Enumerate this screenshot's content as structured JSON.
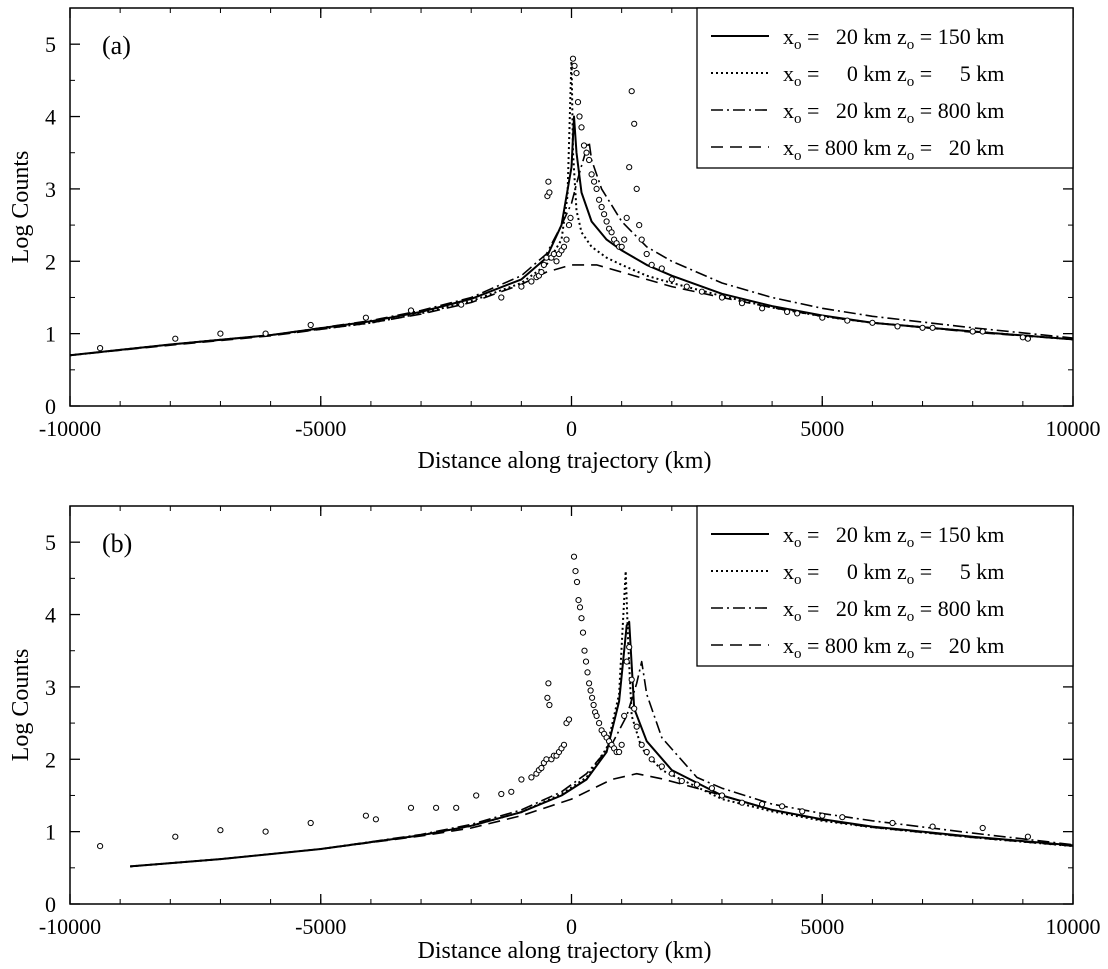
{
  "chart_data": [
    {
      "type": "line",
      "panel_label": "(a)",
      "xlabel": "Distance along trajectory (km)",
      "ylabel": "Log Counts",
      "xlim": [
        -10000,
        10000
      ],
      "ylim": [
        0,
        5.5
      ],
      "x_ticks": [
        -10000,
        -5000,
        0,
        5000,
        10000
      ],
      "y_ticks": [
        0,
        1,
        2,
        3,
        4,
        5
      ],
      "legend_position": "top-right",
      "legend": [
        {
          "prefix": "x",
          "sub": "o",
          "mid_a": " =   20 km z",
          "mid_sub": "o",
          "suffix": " = 150 km",
          "style": "solid"
        },
        {
          "prefix": "x",
          "sub": "o",
          "mid_a": " =     0 km z",
          "mid_sub": "o",
          "suffix": " =     5 km",
          "style": "dotted"
        },
        {
          "prefix": "x",
          "sub": "o",
          "mid_a": " =   20 km z",
          "mid_sub": "o",
          "suffix": " = 800 km",
          "style": "dashdot"
        },
        {
          "prefix": "x",
          "sub": "o",
          "mid_a": " = 800 km z",
          "mid_sub": "o",
          "suffix": " =   20 km",
          "style": "dashed"
        }
      ],
      "series": [
        {
          "style": "solid",
          "x": [
            -10000,
            -8000,
            -6000,
            -4000,
            -3000,
            -2000,
            -1000,
            -500,
            -200,
            0,
            50,
            100,
            200,
            400,
            700,
            1000,
            1500,
            2000,
            3000,
            4000,
            5000,
            6000,
            8000,
            10000
          ],
          "y": [
            0.7,
            0.85,
            0.98,
            1.17,
            1.3,
            1.48,
            1.75,
            2.05,
            2.5,
            3.3,
            4.0,
            3.5,
            2.95,
            2.55,
            2.3,
            2.15,
            1.95,
            1.8,
            1.55,
            1.38,
            1.25,
            1.15,
            1.03,
            0.92
          ]
        },
        {
          "style": "dotted",
          "x": [
            -10000,
            -8000,
            -6000,
            -4000,
            -3000,
            -2000,
            -1000,
            -500,
            -200,
            -80,
            0,
            30,
            100,
            200,
            400,
            700,
            1000,
            1500,
            2000,
            3000,
            4000,
            5000,
            6000,
            8000,
            10000
          ],
          "y": [
            0.7,
            0.85,
            0.98,
            1.15,
            1.28,
            1.45,
            1.7,
            1.95,
            2.3,
            2.9,
            4.8,
            3.5,
            2.7,
            2.4,
            2.2,
            2.05,
            1.95,
            1.8,
            1.7,
            1.52,
            1.36,
            1.24,
            1.15,
            1.03,
            0.92
          ]
        },
        {
          "style": "dashdot",
          "x": [
            -10000,
            -8000,
            -6000,
            -4000,
            -3000,
            -2000,
            -1000,
            -500,
            -200,
            0,
            150,
            300,
            350,
            400,
            600,
            1000,
            1500,
            2000,
            3000,
            4000,
            5000,
            6000,
            8000,
            10000
          ],
          "y": [
            0.7,
            0.85,
            0.98,
            1.18,
            1.32,
            1.5,
            1.8,
            2.1,
            2.5,
            2.8,
            3.2,
            3.55,
            3.65,
            3.4,
            3.0,
            2.55,
            2.2,
            2.0,
            1.7,
            1.5,
            1.35,
            1.24,
            1.08,
            0.94
          ]
        },
        {
          "style": "dashed",
          "x": [
            -10000,
            -8000,
            -6000,
            -4000,
            -3000,
            -2000,
            -1000,
            -500,
            0,
            500,
            1000,
            1500,
            2000,
            3000,
            4000,
            5000,
            6000,
            8000,
            10000
          ],
          "y": [
            0.7,
            0.84,
            0.97,
            1.15,
            1.27,
            1.43,
            1.68,
            1.85,
            1.95,
            1.95,
            1.85,
            1.75,
            1.65,
            1.5,
            1.36,
            1.24,
            1.15,
            1.02,
            0.92
          ]
        }
      ],
      "observations": {
        "x": [
          -9400,
          -7900,
          -7000,
          -6100,
          -5200,
          -4100,
          -3200,
          -2200,
          -1400,
          -1000,
          -800,
          -700,
          -650,
          -600,
          -550,
          -500,
          -480,
          -460,
          -440,
          -400,
          -350,
          -300,
          -250,
          -200,
          -150,
          -100,
          -50,
          -20,
          30,
          60,
          100,
          130,
          160,
          200,
          250,
          300,
          350,
          400,
          450,
          500,
          550,
          600,
          650,
          700,
          750,
          800,
          850,
          900,
          950,
          1000,
          1050,
          1100,
          1150,
          1200,
          1250,
          1300,
          1350,
          1400,
          1500,
          1600,
          1800,
          2000,
          2300,
          2600,
          3000,
          3400,
          3800,
          4300,
          4500,
          5000,
          5500,
          6000,
          6500,
          7000,
          7200,
          8000,
          8200,
          9000,
          9100
        ],
        "y": [
          0.8,
          0.93,
          1.0,
          1.0,
          1.12,
          1.22,
          1.32,
          1.4,
          1.5,
          1.65,
          1.72,
          1.78,
          1.8,
          1.85,
          1.95,
          2.05,
          2.9,
          3.1,
          2.95,
          2.05,
          2.1,
          2.0,
          2.1,
          2.15,
          2.2,
          2.3,
          2.5,
          2.6,
          4.8,
          4.7,
          4.6,
          4.2,
          4.0,
          3.85,
          3.6,
          3.5,
          3.4,
          3.2,
          3.1,
          3.0,
          2.85,
          2.75,
          2.65,
          2.55,
          2.45,
          2.4,
          2.3,
          2.25,
          2.2,
          2.2,
          2.3,
          2.6,
          3.3,
          4.35,
          3.9,
          3.0,
          2.5,
          2.3,
          2.1,
          1.95,
          1.9,
          1.75,
          1.65,
          1.58,
          1.5,
          1.42,
          1.35,
          1.3,
          1.28,
          1.22,
          1.18,
          1.15,
          1.1,
          1.08,
          1.08,
          1.03,
          1.03,
          0.95,
          0.93
        ]
      }
    },
    {
      "type": "line",
      "panel_label": "(b)",
      "xlabel": "Distance along trajectory (km)",
      "ylabel": "Log Counts",
      "xlim": [
        -10000,
        10000
      ],
      "ylim": [
        0,
        5.5
      ],
      "x_ticks": [
        -10000,
        -5000,
        0,
        5000,
        10000
      ],
      "y_ticks": [
        0,
        1,
        2,
        3,
        4,
        5
      ],
      "legend_position": "top-right",
      "legend": [
        {
          "prefix": "x",
          "sub": "o",
          "mid_a": " =   20 km z",
          "mid_sub": "o",
          "suffix": " = 150 km",
          "style": "solid"
        },
        {
          "prefix": "x",
          "sub": "o",
          "mid_a": " =     0 km z",
          "mid_sub": "o",
          "suffix": " =     5 km",
          "style": "dotted"
        },
        {
          "prefix": "x",
          "sub": "o",
          "mid_a": " =   20 km z",
          "mid_sub": "o",
          "suffix": " = 800 km",
          "style": "dashdot"
        },
        {
          "prefix": "x",
          "sub": "o",
          "mid_a": " = 800 km z",
          "mid_sub": "o",
          "suffix": " =   20 km",
          "style": "dashed"
        }
      ],
      "series": [
        {
          "style": "solid",
          "x": [
            -8800,
            -7000,
            -5000,
            -3000,
            -2000,
            -1000,
            -200,
            300,
            700,
            950,
            1100,
            1150,
            1250,
            1500,
            2000,
            3000,
            4000,
            5000,
            6000,
            8000,
            10000
          ],
          "y": [
            0.52,
            0.62,
            0.76,
            0.95,
            1.08,
            1.27,
            1.5,
            1.72,
            2.1,
            2.8,
            3.85,
            3.9,
            2.7,
            2.25,
            1.85,
            1.5,
            1.3,
            1.17,
            1.07,
            0.93,
            0.81
          ]
        },
        {
          "style": "dotted",
          "x": [
            -8800,
            -7000,
            -5000,
            -3000,
            -2000,
            -1000,
            -200,
            300,
            700,
            950,
            1080,
            1130,
            1200,
            1400,
            1800,
            3000,
            4000,
            5000,
            6000,
            8000,
            10000
          ],
          "y": [
            0.52,
            0.62,
            0.76,
            0.95,
            1.08,
            1.27,
            1.52,
            1.75,
            2.15,
            2.9,
            4.6,
            3.6,
            2.6,
            2.15,
            1.85,
            1.45,
            1.28,
            1.15,
            1.06,
            0.92,
            0.8
          ]
        },
        {
          "style": "dashdot",
          "x": [
            -8800,
            -7000,
            -5000,
            -3000,
            -2000,
            -1000,
            -200,
            300,
            800,
            1100,
            1300,
            1400,
            1500,
            1800,
            2500,
            3000,
            4000,
            5000,
            6000,
            8000,
            10000
          ],
          "y": [
            0.52,
            0.62,
            0.76,
            0.96,
            1.1,
            1.3,
            1.55,
            1.8,
            2.2,
            2.6,
            3.05,
            3.35,
            2.9,
            2.3,
            1.75,
            1.6,
            1.38,
            1.25,
            1.15,
            0.98,
            0.82
          ]
        },
        {
          "style": "dashed",
          "x": [
            -8800,
            -7000,
            -5000,
            -3000,
            -2000,
            -1000,
            0,
            800,
            1300,
            1800,
            2500,
            3000,
            4000,
            5000,
            6000,
            8000,
            10000
          ],
          "y": [
            0.52,
            0.62,
            0.76,
            0.94,
            1.05,
            1.22,
            1.45,
            1.72,
            1.8,
            1.73,
            1.6,
            1.5,
            1.3,
            1.16,
            1.06,
            0.92,
            0.8
          ]
        }
      ],
      "observations": {
        "x": [
          -9400,
          -7900,
          -7000,
          -6100,
          -5200,
          -4100,
          -3900,
          -3200,
          -2700,
          -2300,
          -1900,
          -1400,
          -1200,
          -1000,
          -800,
          -700,
          -650,
          -600,
          -550,
          -500,
          -480,
          -460,
          -440,
          -400,
          -350,
          -300,
          -250,
          -200,
          -150,
          -100,
          -50,
          50,
          80,
          110,
          140,
          170,
          200,
          230,
          260,
          290,
          320,
          350,
          380,
          410,
          440,
          470,
          500,
          550,
          600,
          650,
          700,
          750,
          800,
          850,
          900,
          950,
          1000,
          1050,
          1100,
          1150,
          1200,
          1250,
          1300,
          1400,
          1500,
          1600,
          1800,
          2000,
          2200,
          2500,
          2800,
          3000,
          3400,
          3800,
          4200,
          4600,
          5000,
          5400,
          6400,
          7200,
          8200,
          9100
        ],
        "y": [
          0.8,
          0.93,
          1.02,
          1.0,
          1.12,
          1.22,
          1.17,
          1.33,
          1.33,
          1.33,
          1.5,
          1.52,
          1.55,
          1.72,
          1.75,
          1.8,
          1.85,
          1.88,
          1.95,
          2.0,
          2.85,
          3.05,
          2.75,
          2.0,
          2.05,
          2.05,
          2.1,
          2.15,
          2.2,
          2.5,
          2.55,
          4.8,
          4.6,
          4.45,
          4.2,
          4.1,
          3.95,
          3.75,
          3.5,
          3.35,
          3.2,
          3.05,
          2.95,
          2.85,
          2.75,
          2.65,
          2.6,
          2.5,
          2.4,
          2.35,
          2.3,
          2.25,
          2.2,
          2.15,
          2.1,
          2.1,
          2.2,
          2.6,
          3.35,
          3.55,
          3.1,
          2.7,
          2.45,
          2.2,
          2.1,
          2.0,
          1.9,
          1.8,
          1.7,
          1.65,
          1.6,
          1.5,
          1.4,
          1.38,
          1.35,
          1.28,
          1.22,
          1.2,
          1.12,
          1.07,
          1.05,
          0.93
        ]
      }
    }
  ]
}
